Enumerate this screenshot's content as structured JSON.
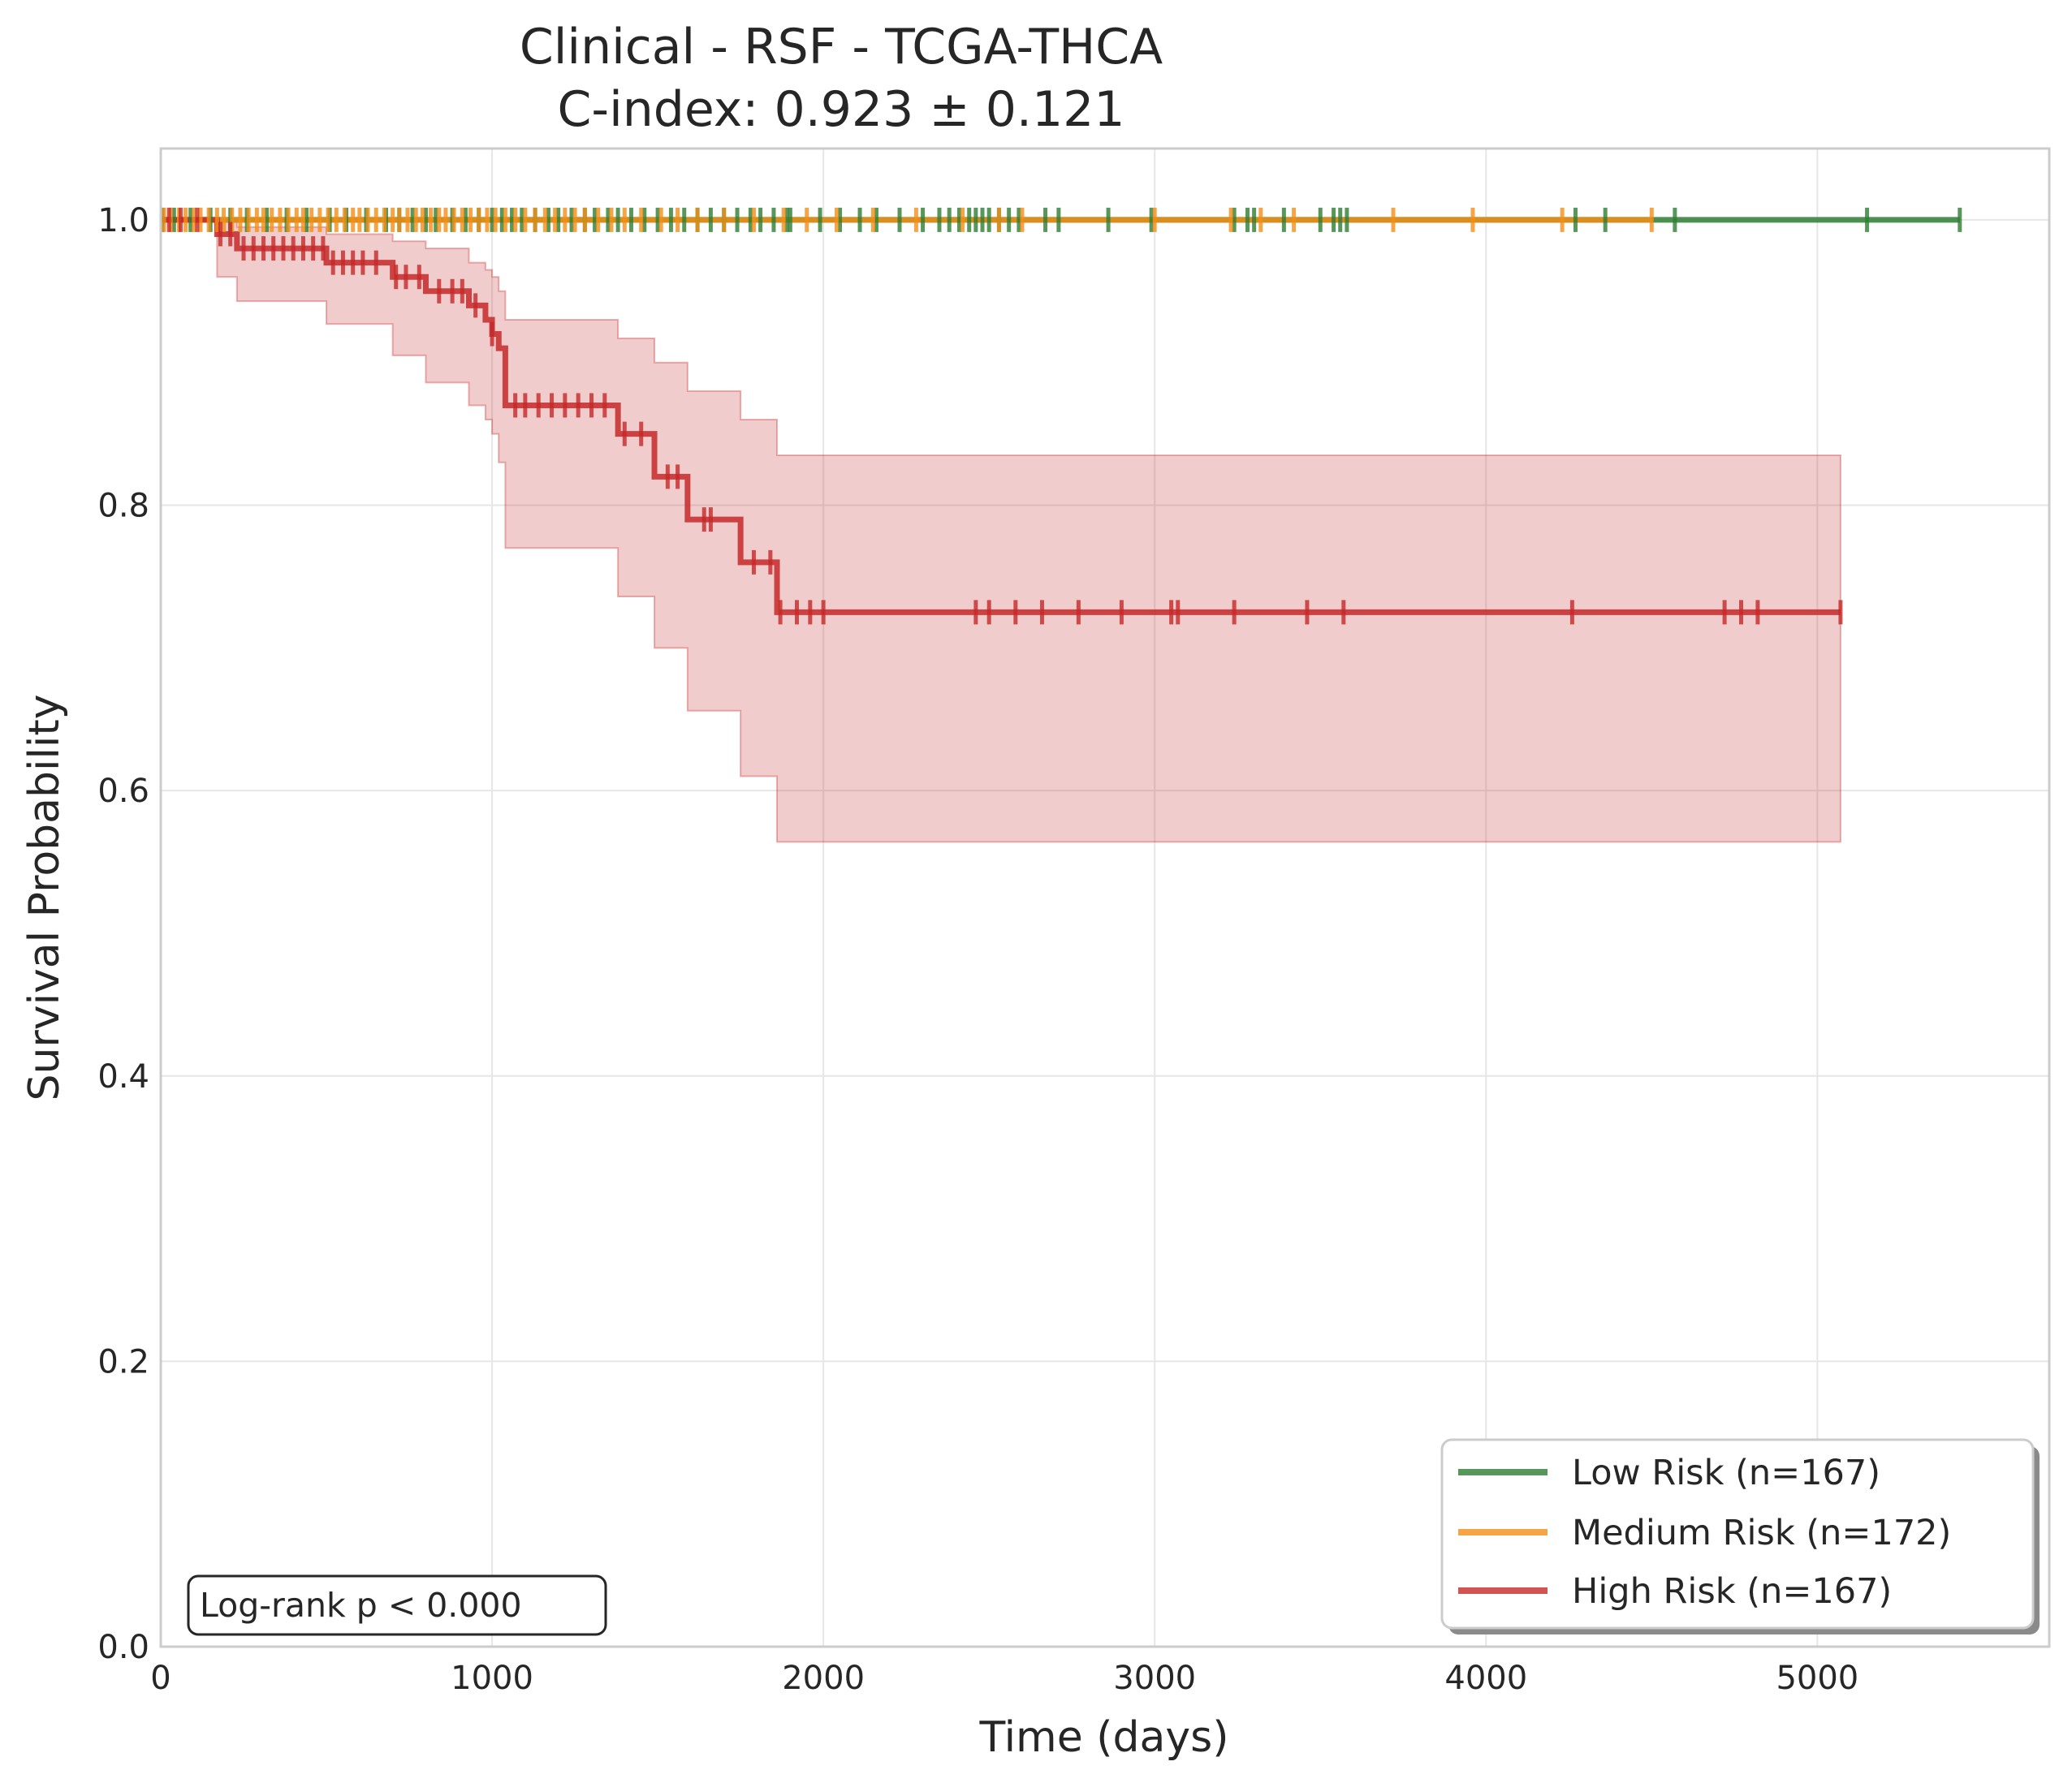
{
  "chart_data": {
    "type": "line",
    "subtype": "kaplan-meier",
    "title": "Clinical - RSF - TCGA-THCA",
    "subtitle": "C-index: 0.923 ± 0.121",
    "xlabel": "Time (days)",
    "ylabel": "Survival Probability",
    "xlim": [
      0,
      5700
    ],
    "ylim": [
      0,
      1.05
    ],
    "xticks": [
      0,
      1000,
      2000,
      3000,
      4000,
      5000
    ],
    "xtick_labels": [
      "0",
      "1000",
      "2000",
      "3000",
      "4000",
      "5000"
    ],
    "yticks": [
      0.0,
      0.2,
      0.4,
      0.6,
      0.8,
      1.0
    ],
    "ytick_labels": [
      "0.0",
      "0.2",
      "0.4",
      "0.6",
      "0.8",
      "1.0"
    ],
    "grid": true,
    "legend_position": "bottom-right",
    "annotation": "Log-rank p < 0.000",
    "series": [
      {
        "name": "Low Risk (n=167)",
        "color": "#2e7d32",
        "steps": [
          [
            0,
            1.0
          ],
          [
            5430,
            1.0
          ]
        ],
        "censor_times": [
          5,
          40,
          90,
          150,
          210,
          260,
          320,
          380,
          440,
          510,
          560,
          620,
          680,
          720,
          760,
          800,
          830,
          880,
          920,
          960,
          1000,
          1030,
          1060,
          1090,
          1130,
          1170,
          1200,
          1240,
          1280,
          1310,
          1350,
          1380,
          1420,
          1460,
          1500,
          1540,
          1580,
          1620,
          1660,
          1700,
          1740,
          1780,
          1810,
          1850,
          1890,
          1900,
          1990,
          2050,
          2110,
          2160,
          2230,
          2300,
          2350,
          2380,
          2410,
          2440,
          2460,
          2480,
          2500,
          2530,
          2560,
          2590,
          2670,
          2710,
          2860,
          2990,
          3240,
          3280,
          3300,
          3390,
          3500,
          3540,
          3560,
          3580,
          4270,
          4360,
          4570,
          5150,
          5430
        ]
      },
      {
        "name": "Medium Risk (n=172)",
        "color": "#f28e16",
        "steps": [
          [
            0,
            1.0
          ],
          [
            4500,
            1.0
          ]
        ],
        "censor_times": [
          10,
          30,
          55,
          75,
          100,
          120,
          145,
          170,
          190,
          215,
          240,
          265,
          290,
          310,
          335,
          360,
          385,
          410,
          430,
          455,
          480,
          505,
          530,
          555,
          580,
          600,
          625,
          650,
          675,
          700,
          720,
          745,
          770,
          790,
          815,
          840,
          860,
          885,
          910,
          935,
          960,
          985,
          1010,
          1040,
          1070,
          1100,
          1130,
          1160,
          1190,
          1220,
          1250,
          1280,
          1320,
          1360,
          1400,
          1450,
          1510,
          1560,
          1620,
          1700,
          1790,
          1880,
          1950,
          2040,
          2150,
          2280,
          2420,
          2530,
          2600,
          3000,
          3230,
          3320,
          3420,
          3720,
          3960,
          4230,
          4500
        ]
      },
      {
        "name": "High Risk (n=167)",
        "color": "#c62828",
        "steps": [
          [
            0,
            1.0
          ],
          [
            170,
            0.99
          ],
          [
            230,
            0.98
          ],
          [
            500,
            0.97
          ],
          [
            700,
            0.96
          ],
          [
            800,
            0.95
          ],
          [
            930,
            0.94
          ],
          [
            980,
            0.93
          ],
          [
            1000,
            0.92
          ],
          [
            1020,
            0.91
          ],
          [
            1040,
            0.87
          ],
          [
            1380,
            0.85
          ],
          [
            1490,
            0.82
          ],
          [
            1590,
            0.79
          ],
          [
            1750,
            0.76
          ],
          [
            1860,
            0.725
          ],
          [
            5070,
            0.725
          ]
        ],
        "ci_steps": [
          [
            0,
            1.0,
            1.0
          ],
          [
            170,
            0.96,
            1.0
          ],
          [
            230,
            0.943,
            0.995
          ],
          [
            500,
            0.927,
            0.99
          ],
          [
            700,
            0.905,
            0.985
          ],
          [
            800,
            0.886,
            0.98
          ],
          [
            930,
            0.87,
            0.97
          ],
          [
            980,
            0.86,
            0.965
          ],
          [
            1000,
            0.85,
            0.96
          ],
          [
            1020,
            0.83,
            0.95
          ],
          [
            1040,
            0.77,
            0.93
          ],
          [
            1380,
            0.736,
            0.917
          ],
          [
            1490,
            0.7,
            0.9
          ],
          [
            1590,
            0.656,
            0.88
          ],
          [
            1750,
            0.61,
            0.86
          ],
          [
            1860,
            0.564,
            0.835
          ],
          [
            5070,
            0.564,
            0.835
          ]
        ],
        "censor_times": [
          25,
          60,
          110,
          180,
          210,
          250,
          280,
          310,
          340,
          370,
          400,
          430,
          460,
          490,
          520,
          550,
          580,
          610,
          650,
          710,
          740,
          780,
          840,
          880,
          910,
          950,
          1000,
          1070,
          1100,
          1140,
          1180,
          1220,
          1260,
          1300,
          1340,
          1400,
          1450,
          1530,
          1560,
          1640,
          1660,
          1790,
          1840,
          1870,
          1920,
          1960,
          2000,
          2460,
          2500,
          2580,
          2660,
          2770,
          2900,
          3050,
          3070,
          3240,
          3460,
          3570,
          4260,
          4720,
          4770,
          4820,
          5070
        ]
      }
    ]
  }
}
